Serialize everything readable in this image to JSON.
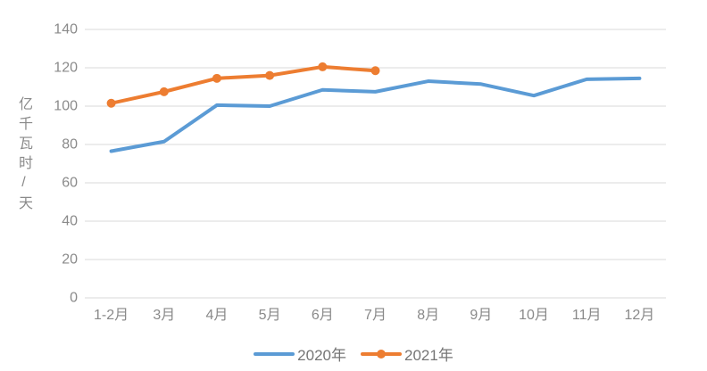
{
  "chart_data": {
    "type": "line",
    "title": "",
    "ylabel": "亿千瓦时/天",
    "xlabel": "",
    "ylim": [
      0,
      140
    ],
    "ytick_step": 20,
    "grid": true,
    "legend_position": "bottom",
    "categories": [
      "1-2月",
      "3月",
      "4月",
      "5月",
      "6月",
      "7月",
      "8月",
      "9月",
      "10月",
      "11月",
      "12月"
    ],
    "series": [
      {
        "name": "2020年",
        "color": "#5B9BD5",
        "marker": false,
        "values": [
          76.5,
          81.5,
          100.5,
          100,
          108.5,
          107.5,
          113,
          111.5,
          105.5,
          114,
          114.5
        ]
      },
      {
        "name": "2021年",
        "color": "#ED7D31",
        "marker": true,
        "values": [
          101.5,
          107.5,
          114.5,
          116,
          120.5,
          118.5
        ]
      }
    ]
  },
  "style": {
    "gridline_color": "#D9D9D9",
    "tick_label_color": "#8A8A8A",
    "legend_label_color": "#757575",
    "background": "#FFFFFF"
  }
}
